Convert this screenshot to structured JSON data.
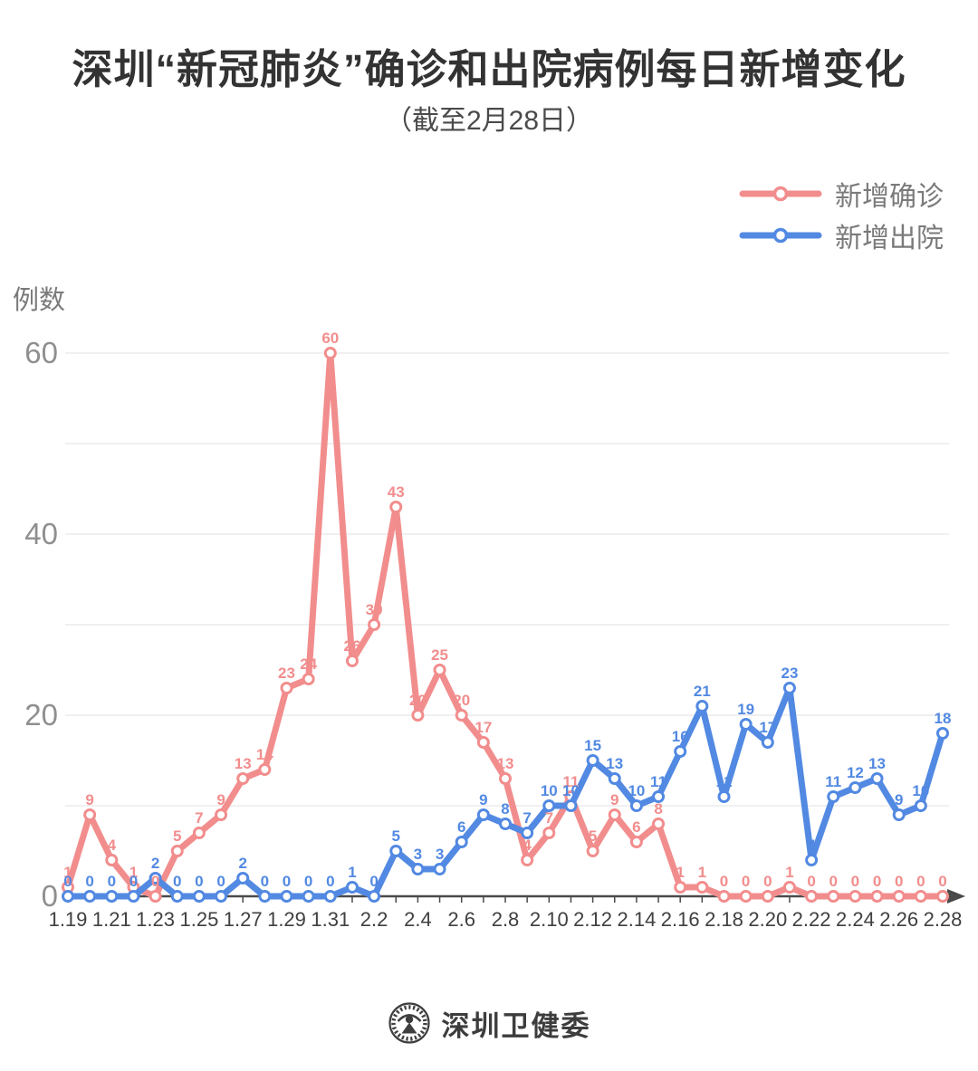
{
  "title": "深圳“新冠肺炎”确诊和出院病例每日新增变化",
  "subtitle": "（截至2月28日）",
  "legend": {
    "items": [
      {
        "label": "新增确诊",
        "color": "#F28D8D"
      },
      {
        "label": "新增出院",
        "color": "#5289E2"
      }
    ]
  },
  "footer": {
    "org_name": "深圳卫健委"
  },
  "chart_data": {
    "type": "line",
    "title": "深圳“新冠肺炎”确诊和出院病例每日新增变化",
    "subtitle": "（截至2月28日）",
    "xlabel": "",
    "ylabel": "例数",
    "ylim": [
      0,
      62
    ],
    "yticks_labeled": [
      0,
      20,
      40,
      60
    ],
    "grid_values": [
      10,
      20,
      30,
      40,
      50,
      60
    ],
    "grid": "horizontal",
    "legend_position": "top-right",
    "x_label_step": 2,
    "x": [
      "1.19",
      "1.20",
      "1.21",
      "1.22",
      "1.23",
      "1.24",
      "1.25",
      "1.26",
      "1.27",
      "1.28",
      "1.29",
      "1.30",
      "1.31",
      "2.1",
      "2.2",
      "2.3",
      "2.4",
      "2.5",
      "2.6",
      "2.7",
      "2.8",
      "2.9",
      "2.10",
      "2.11",
      "2.12",
      "2.13",
      "2.14",
      "2.15",
      "2.16",
      "2.17",
      "2.18",
      "2.19",
      "2.20",
      "2.21",
      "2.22",
      "2.23",
      "2.24",
      "2.25",
      "2.26",
      "2.27",
      "2.28"
    ],
    "series": [
      {
        "name": "新增确诊",
        "color": "#F28D8D",
        "values": [
          1,
          9,
          4,
          1,
          0,
          5,
          7,
          9,
          13,
          14,
          23,
          24,
          60,
          26,
          30,
          43,
          20,
          25,
          20,
          17,
          13,
          4,
          7,
          11,
          5,
          9,
          6,
          8,
          1,
          1,
          0,
          0,
          0,
          1,
          0,
          0,
          0,
          0,
          0,
          0,
          0
        ]
      },
      {
        "name": "新增出院",
        "color": "#5289E2",
        "values": [
          0,
          0,
          0,
          0,
          2,
          0,
          0,
          0,
          2,
          0,
          0,
          0,
          0,
          1,
          0,
          5,
          3,
          3,
          6,
          9,
          8,
          7,
          10,
          10,
          15,
          13,
          10,
          11,
          16,
          21,
          11,
          19,
          17,
          23,
          4,
          11,
          12,
          13,
          9,
          10,
          18
        ]
      }
    ]
  }
}
